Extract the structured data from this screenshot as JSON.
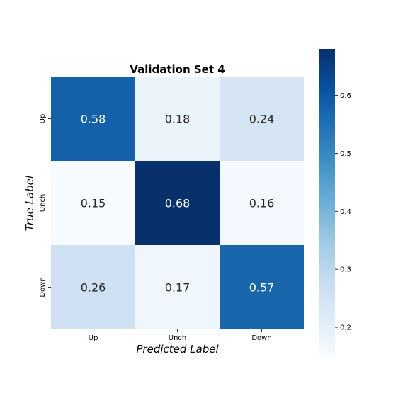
{
  "chart_data": {
    "type": "heatmap",
    "title": "Validation Set 4",
    "xlabel": "Predicted Label",
    "ylabel": "True Label",
    "x_categories": [
      "Up",
      "Unch",
      "Down"
    ],
    "y_categories": [
      "Up",
      "Unch",
      "Down"
    ],
    "values": [
      [
        0.58,
        0.18,
        0.24
      ],
      [
        0.15,
        0.68,
        0.16
      ],
      [
        0.26,
        0.17,
        0.57
      ]
    ],
    "value_labels": [
      [
        "0.58",
        "0.18",
        "0.24"
      ],
      [
        "0.15",
        "0.68",
        "0.16"
      ],
      [
        "0.26",
        "0.17",
        "0.57"
      ]
    ],
    "colormap": "Blues",
    "colorbar": {
      "range": [
        0.15,
        0.68
      ],
      "ticks": [
        0.2,
        0.3,
        0.4,
        0.5,
        0.6
      ],
      "tick_labels": [
        "0.2",
        "0.3",
        "0.4",
        "0.5",
        "0.6"
      ]
    },
    "grid": false,
    "legend": "colorbar-right"
  }
}
